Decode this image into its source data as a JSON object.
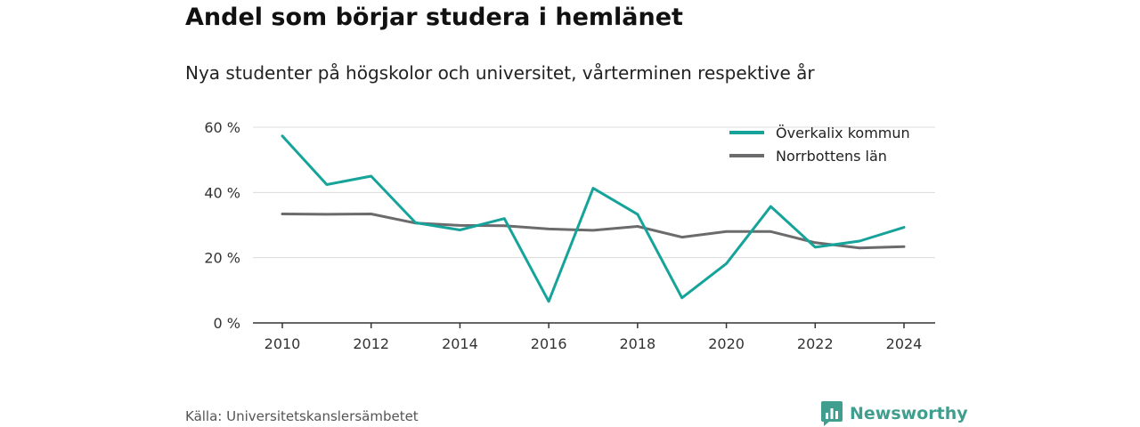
{
  "header": {
    "title": "Andel som börjar studera i hemlänet",
    "subtitle": "Nya studenter på högskolor och universitet, vårterminen respektive år"
  },
  "footer": {
    "source": "Källa: Universitetskanslersämbetet",
    "brand": "Newsworthy",
    "brand_icon": "bar-chart-icon",
    "brand_color": "#3f9e8e"
  },
  "chart_data": {
    "type": "line",
    "title": "Andel som börjar studera i hemlänet",
    "subtitle": "Nya studenter på högskolor och universitet, vårterminen respektive år",
    "xlabel": "",
    "ylabel": "",
    "x": [
      2010,
      2011,
      2012,
      2013,
      2014,
      2015,
      2016,
      2017,
      2018,
      2019,
      2020,
      2021,
      2022,
      2023,
      2024
    ],
    "xticks": [
      "2010",
      "2012",
      "2014",
      "2016",
      "2018",
      "2020",
      "2022",
      "2024"
    ],
    "yticks": [
      "0 %",
      "20 %",
      "40 %",
      "60 %"
    ],
    "ylim": [
      0,
      60
    ],
    "grid": true,
    "legend_position": "top-right",
    "series": [
      {
        "name": "Överkalix kommun",
        "color": "#15a39a",
        "values": [
          57.3,
          42.4,
          45.0,
          30.7,
          28.5,
          32.0,
          6.6,
          41.3,
          33.3,
          7.7,
          18.2,
          35.7,
          23.2,
          25.1,
          29.3
        ]
      },
      {
        "name": "Norrbottens län",
        "color": "#6b6b6d",
        "values": [
          33.4,
          33.3,
          33.4,
          30.6,
          29.9,
          29.8,
          28.8,
          28.4,
          29.6,
          26.3,
          28.0,
          28.0,
          24.6,
          23.0,
          23.4
        ]
      }
    ]
  }
}
